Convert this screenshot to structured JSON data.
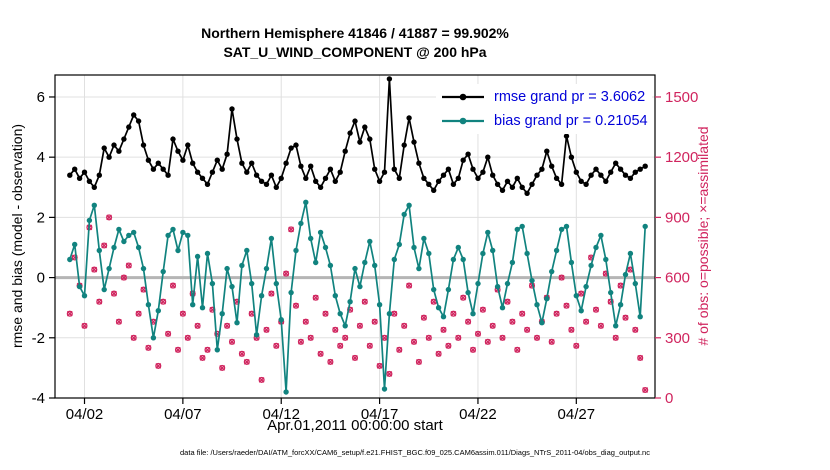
{
  "title": {
    "line1": "Northern Hemisphere 41846 / 41887 = 99.902%",
    "line2": "SAT_U_WIND_COMPONENT @ 200 hPa"
  },
  "axes": {
    "left_label": "rmse and bias (model - observation)",
    "right_label": "# of obs: o=possible; ×=assimilated",
    "x_label": "Apr.01,2011 00:00:00 start"
  },
  "legend": {
    "rmse": "rmse grand pr = 3.6062",
    "bias": "bias grand pr = 0.21054"
  },
  "caption": "data file: /Users/raeder/DAI/ATM_forcXX/CAM6_setup/f.e21.FHIST_BGC.f09_025.CAM6assim.011/Diags_NTrS_2011-04/obs_diag_output.nc",
  "chart_data": {
    "type": "line",
    "title": "Northern Hemisphere 41846 / 41887 = 99.902% — SAT_U_WIND_COMPONENT @ 200 hPa",
    "xlabel": "Apr.01,2011 00:00:00 start",
    "ylabel_left": "rmse and bias (model - observation)",
    "ylabel_right": "# of obs: o=possible; ×=assimilated",
    "grid": true,
    "legend_position": "top-right-inside",
    "x_range_days": [
      -0.5,
      30
    ],
    "x_start_days": 0.25,
    "x_step_days": 0.25,
    "x_ticks": [
      {
        "t": 1,
        "label": "04/02"
      },
      {
        "t": 6,
        "label": "04/07"
      },
      {
        "t": 11,
        "label": "04/12"
      },
      {
        "t": 16,
        "label": "04/17"
      },
      {
        "t": 21,
        "label": "04/22"
      },
      {
        "t": 26,
        "label": "04/27"
      }
    ],
    "y_left": {
      "range": [
        -4,
        6.73
      ],
      "ticks": [
        -4,
        -2,
        0,
        2,
        4,
        6
      ]
    },
    "y_right": {
      "ticks": [
        0,
        300,
        600,
        900,
        1200,
        1500
      ],
      "counts_per_left_unit": 150,
      "left_offset": -4
    },
    "colors": {
      "rmse": "#000000",
      "bias": "#11837f",
      "obs": "#d0245e",
      "grid": "#e0e0e0",
      "zero_line": "#b5b5b5",
      "legend_text": "#0000d8",
      "axis": "#000000"
    },
    "series": [
      {
        "name": "rmse",
        "grand_mean": 3.6062,
        "style": "line+dot",
        "axis": "left",
        "values": [
          3.4,
          3.6,
          3.3,
          3.5,
          3.2,
          3.0,
          3.4,
          4.3,
          4.0,
          4.4,
          4.2,
          4.6,
          5.0,
          5.4,
          5.2,
          4.4,
          3.9,
          3.6,
          3.8,
          3.6,
          3.4,
          4.6,
          4.2,
          3.9,
          4.4,
          3.8,
          3.5,
          3.3,
          3.1,
          3.5,
          3.9,
          3.6,
          4.1,
          5.6,
          4.6,
          3.8,
          3.5,
          3.8,
          3.4,
          3.2,
          3.1,
          3.4,
          3.0,
          3.3,
          3.8,
          4.3,
          4.4,
          3.7,
          3.3,
          3.7,
          3.2,
          3.0,
          3.3,
          3.6,
          3.2,
          3.5,
          4.2,
          4.8,
          5.2,
          4.5,
          5.0,
          4.6,
          3.6,
          3.2,
          3.5,
          6.6,
          3.6,
          3.3,
          4.4,
          5.3,
          4.5,
          3.8,
          3.3,
          3.1,
          2.9,
          3.2,
          3.4,
          3.6,
          3.1,
          3.3,
          3.9,
          4.1,
          3.6,
          3.3,
          3.5,
          4.0,
          3.4,
          3.1,
          2.9,
          3.2,
          3.0,
          3.3,
          3.0,
          2.8,
          3.1,
          3.4,
          3.6,
          4.2,
          3.7,
          3.3,
          3.1,
          4.7,
          4.0,
          3.5,
          3.2,
          3.1,
          3.4,
          3.6,
          3.4,
          3.2,
          3.5,
          3.8,
          3.6,
          3.4,
          3.3,
          3.5,
          3.6,
          3.7
        ]
      },
      {
        "name": "bias",
        "grand_mean": 0.21054,
        "style": "line+dot",
        "axis": "left",
        "values": [
          0.6,
          1.1,
          -0.3,
          -0.6,
          1.9,
          2.4,
          0.9,
          -0.4,
          0.3,
          1.0,
          1.6,
          1.2,
          1.4,
          1.5,
          1.0,
          0.3,
          -0.9,
          -2.0,
          -1.1,
          0.2,
          1.4,
          1.6,
          0.9,
          1.5,
          1.4,
          -0.9,
          0.7,
          -1.0,
          0.8,
          -0.2,
          -2.4,
          -1.2,
          0.3,
          -0.3,
          -1.5,
          0.4,
          0.9,
          -0.2,
          -1.9,
          -0.6,
          0.3,
          1.3,
          -0.2,
          -1.4,
          -3.8,
          -0.5,
          0.9,
          1.8,
          2.5,
          1.3,
          0.5,
          1.5,
          1.0,
          0.4,
          -0.6,
          -1.2,
          -1.6,
          -0.8,
          0.3,
          -0.3,
          0.5,
          1.2,
          0.4,
          -0.9,
          -3.7,
          -1.2,
          0.6,
          1.1,
          2.1,
          2.4,
          1.0,
          0.3,
          1.3,
          0.8,
          -0.4,
          -1.0,
          -1.3,
          -0.4,
          0.6,
          1.0,
          0.6,
          -0.5,
          -1.2,
          -0.2,
          0.8,
          1.5,
          0.9,
          -0.3,
          -1.0,
          -0.2,
          0.5,
          1.6,
          1.7,
          0.8,
          -0.1,
          -0.9,
          -1.5,
          -0.7,
          0.2,
          0.9,
          1.6,
          1.7,
          0.5,
          -0.6,
          -1.1,
          -0.3,
          0.4,
          1.0,
          1.4,
          0.6,
          -0.5,
          -1.6,
          -0.9,
          0.1,
          0.8,
          -0.2,
          -1.3,
          1.7
        ]
      },
      {
        "name": "obs_count",
        "style": "o-and-x-markers",
        "axis": "right",
        "note": "o=possible and x=assimilated overlap (99.902% assimilated)",
        "values": [
          420,
          700,
          560,
          360,
          850,
          640,
          480,
          760,
          900,
          520,
          380,
          600,
          660,
          300,
          420,
          540,
          250,
          380,
          160,
          480,
          320,
          560,
          240,
          420,
          300,
          520,
          360,
          200,
          240,
          440,
          320,
          150,
          360,
          280,
          480,
          220,
          180,
          420,
          300,
          90,
          340,
          520,
          260,
          380,
          620,
          840,
          460,
          280,
          380,
          300,
          500,
          220,
          420,
          180,
          340,
          260,
          300,
          440,
          200,
          360,
          480,
          260,
          380,
          160,
          300,
          120,
          420,
          240,
          360,
          560,
          280,
          180,
          400,
          300,
          480,
          220,
          340,
          260,
          420,
          300,
          500,
          380,
          240,
          320,
          440,
          280,
          360,
          540,
          300,
          480,
          380,
          240,
          420,
          340,
          560,
          300,
          380,
          500,
          280,
          420,
          600,
          460,
          340,
          260,
          520,
          380,
          700,
          440,
          360,
          620,
          480,
          300,
          560,
          400,
          640,
          340,
          200,
          40
        ]
      }
    ]
  }
}
